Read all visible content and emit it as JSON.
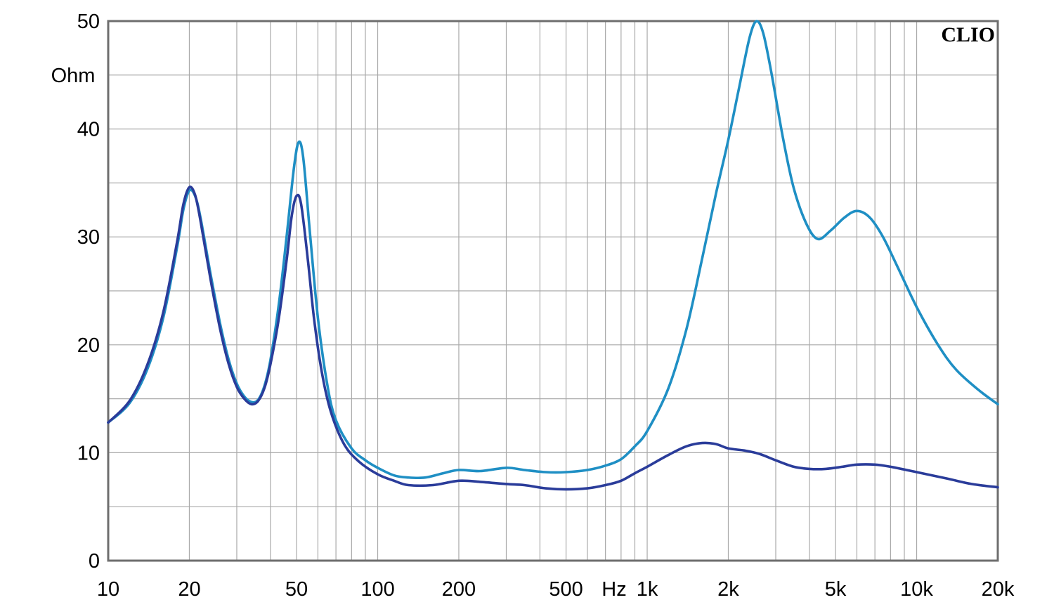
{
  "chart_data": {
    "type": "line",
    "brand": "CLIO",
    "ylabel": "Ohm",
    "xunit": "Hz",
    "xscale": "log",
    "xlim": [
      10,
      20000
    ],
    "ylim": [
      0,
      50
    ],
    "grid": true,
    "x_ticks": [
      {
        "value": 10,
        "label": "10"
      },
      {
        "value": 20,
        "label": "20"
      },
      {
        "value": 50,
        "label": "50"
      },
      {
        "value": 100,
        "label": "100"
      },
      {
        "value": 200,
        "label": "200"
      },
      {
        "value": 500,
        "label": "500"
      },
      {
        "value": 1000,
        "label": "1k"
      },
      {
        "value": 2000,
        "label": "2k"
      },
      {
        "value": 5000,
        "label": "5k"
      },
      {
        "value": 10000,
        "label": "10k"
      },
      {
        "value": 20000,
        "label": "20k"
      }
    ],
    "y_ticks": [
      {
        "value": 0,
        "label": "0"
      },
      {
        "value": 10,
        "label": "10"
      },
      {
        "value": 20,
        "label": "20"
      },
      {
        "value": 30,
        "label": "30"
      },
      {
        "value": 40,
        "label": "40"
      },
      {
        "value": 50,
        "label": "50"
      }
    ],
    "colors": {
      "grid": "#a9a9a9",
      "frame": "#6e6e6e",
      "series_light": "#1f8fc4",
      "series_dark": "#2a3c9a"
    },
    "series": [
      {
        "key": "light",
        "color": "#1f8fc4",
        "points": [
          [
            10,
            12.8
          ],
          [
            12,
            14.6
          ],
          [
            14,
            17.8
          ],
          [
            16,
            22.5
          ],
          [
            18,
            29.0
          ],
          [
            19,
            32.5
          ],
          [
            20,
            34.3
          ],
          [
            21,
            33.8
          ],
          [
            22,
            31.8
          ],
          [
            24,
            26.5
          ],
          [
            26,
            22.0
          ],
          [
            28,
            18.6
          ],
          [
            30,
            16.4
          ],
          [
            32,
            15.2
          ],
          [
            34,
            14.7
          ],
          [
            36,
            14.9
          ],
          [
            38,
            16.2
          ],
          [
            40,
            18.6
          ],
          [
            43,
            23.8
          ],
          [
            46,
            30.2
          ],
          [
            49,
            36.6
          ],
          [
            51,
            38.8
          ],
          [
            53,
            37.2
          ],
          [
            56,
            30.5
          ],
          [
            60,
            22.5
          ],
          [
            65,
            16.3
          ],
          [
            70,
            13.0
          ],
          [
            80,
            10.4
          ],
          [
            90,
            9.3
          ],
          [
            100,
            8.6
          ],
          [
            115,
            7.9
          ],
          [
            130,
            7.7
          ],
          [
            150,
            7.7
          ],
          [
            175,
            8.1
          ],
          [
            200,
            8.4
          ],
          [
            240,
            8.3
          ],
          [
            300,
            8.6
          ],
          [
            350,
            8.4
          ],
          [
            420,
            8.2
          ],
          [
            500,
            8.2
          ],
          [
            600,
            8.4
          ],
          [
            700,
            8.8
          ],
          [
            800,
            9.4
          ],
          [
            900,
            10.6
          ],
          [
            1000,
            12.0
          ],
          [
            1200,
            16.0
          ],
          [
            1400,
            21.5
          ],
          [
            1600,
            28.0
          ],
          [
            1800,
            34.0
          ],
          [
            2000,
            39.0
          ],
          [
            2200,
            44.0
          ],
          [
            2400,
            48.5
          ],
          [
            2550,
            50.0
          ],
          [
            2700,
            48.8
          ],
          [
            2900,
            45.0
          ],
          [
            3200,
            39.0
          ],
          [
            3500,
            34.5
          ],
          [
            3900,
            31.2
          ],
          [
            4300,
            29.8
          ],
          [
            4800,
            30.6
          ],
          [
            5400,
            31.8
          ],
          [
            6000,
            32.4
          ],
          [
            6700,
            31.8
          ],
          [
            7500,
            30.0
          ],
          [
            8500,
            27.2
          ],
          [
            10000,
            23.5
          ],
          [
            12000,
            20.0
          ],
          [
            14000,
            17.7
          ],
          [
            17000,
            15.8
          ],
          [
            20000,
            14.5
          ]
        ]
      },
      {
        "key": "dark",
        "color": "#2a3c9a",
        "points": [
          [
            10,
            12.8
          ],
          [
            12,
            14.8
          ],
          [
            14,
            18.2
          ],
          [
            16,
            23.0
          ],
          [
            18,
            29.5
          ],
          [
            19,
            33.0
          ],
          [
            20,
            34.6
          ],
          [
            21,
            33.9
          ],
          [
            22,
            31.5
          ],
          [
            24,
            26.0
          ],
          [
            26,
            21.5
          ],
          [
            28,
            18.2
          ],
          [
            30,
            16.1
          ],
          [
            32,
            15.0
          ],
          [
            34,
            14.5
          ],
          [
            36,
            14.8
          ],
          [
            38,
            16.0
          ],
          [
            40,
            18.2
          ],
          [
            43,
            22.5
          ],
          [
            46,
            28.0
          ],
          [
            48,
            32.0
          ],
          [
            50,
            33.8
          ],
          [
            52,
            33.0
          ],
          [
            55,
            28.0
          ],
          [
            58,
            22.5
          ],
          [
            62,
            17.5
          ],
          [
            67,
            13.8
          ],
          [
            75,
            10.8
          ],
          [
            85,
            9.2
          ],
          [
            100,
            8.0
          ],
          [
            115,
            7.4
          ],
          [
            130,
            7.0
          ],
          [
            160,
            7.0
          ],
          [
            200,
            7.4
          ],
          [
            240,
            7.3
          ],
          [
            300,
            7.1
          ],
          [
            350,
            7.0
          ],
          [
            420,
            6.7
          ],
          [
            500,
            6.6
          ],
          [
            600,
            6.7
          ],
          [
            700,
            7.0
          ],
          [
            800,
            7.4
          ],
          [
            900,
            8.1
          ],
          [
            1000,
            8.7
          ],
          [
            1200,
            9.8
          ],
          [
            1400,
            10.6
          ],
          [
            1600,
            10.9
          ],
          [
            1800,
            10.8
          ],
          [
            2000,
            10.4
          ],
          [
            2300,
            10.2
          ],
          [
            2600,
            9.9
          ],
          [
            3000,
            9.3
          ],
          [
            3500,
            8.7
          ],
          [
            4000,
            8.5
          ],
          [
            4600,
            8.5
          ],
          [
            5300,
            8.7
          ],
          [
            6000,
            8.9
          ],
          [
            7000,
            8.9
          ],
          [
            8000,
            8.7
          ],
          [
            10000,
            8.2
          ],
          [
            13000,
            7.6
          ],
          [
            16000,
            7.1
          ],
          [
            20000,
            6.8
          ]
        ]
      }
    ]
  }
}
